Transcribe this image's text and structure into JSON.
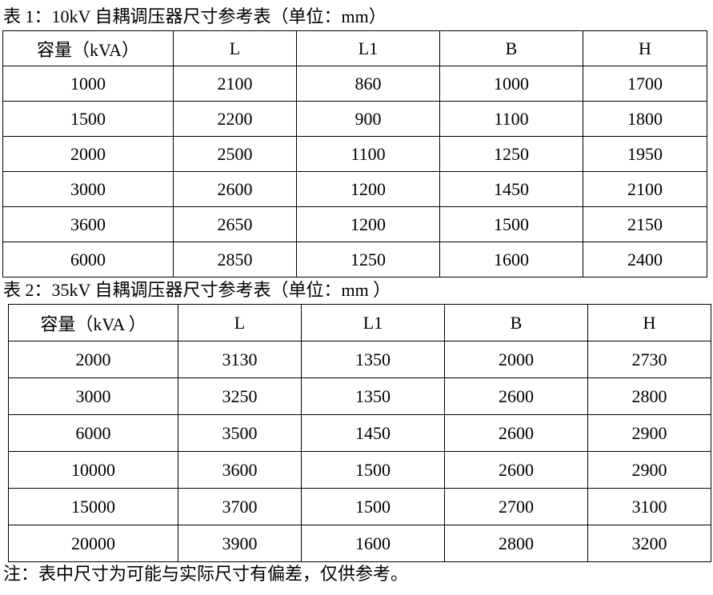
{
  "table1": {
    "title": "表 1：10kV 自耦调压器尺寸参考表（单位：mm）",
    "headers": [
      "容量（kVA）",
      "L",
      "L1",
      "B",
      "H"
    ],
    "rows": [
      [
        "1000",
        "2100",
        "860",
        "1000",
        "1700"
      ],
      [
        "1500",
        "2200",
        "900",
        "1100",
        "1800"
      ],
      [
        "2000",
        "2500",
        "1100",
        "1250",
        "1950"
      ],
      [
        "3000",
        "2600",
        "1200",
        "1450",
        "2100"
      ],
      [
        "3600",
        "2650",
        "1200",
        "1500",
        "2150"
      ],
      [
        "6000",
        "2850",
        "1250",
        "1600",
        "2400"
      ]
    ]
  },
  "table2": {
    "title": "表 2：35kV 自耦调压器尺寸参考表（单位：mm ）",
    "headers": [
      "容量（kVA ）",
      "L",
      "L1",
      "B",
      "H"
    ],
    "rows": [
      [
        "2000",
        "3130",
        "1350",
        "2000",
        "2730"
      ],
      [
        "3000",
        "3250",
        "1350",
        "2600",
        "2800"
      ],
      [
        "6000",
        "3500",
        "1450",
        "2600",
        "2900"
      ],
      [
        "10000",
        "3600",
        "1500",
        "2600",
        "2900"
      ],
      [
        "15000",
        "3700",
        "1500",
        "2700",
        "3100"
      ],
      [
        "20000",
        "3900",
        "1600",
        "2800",
        "3200"
      ]
    ]
  },
  "note": "注：表中尺寸为可能与实际尺寸有偏差，仅供参考。"
}
